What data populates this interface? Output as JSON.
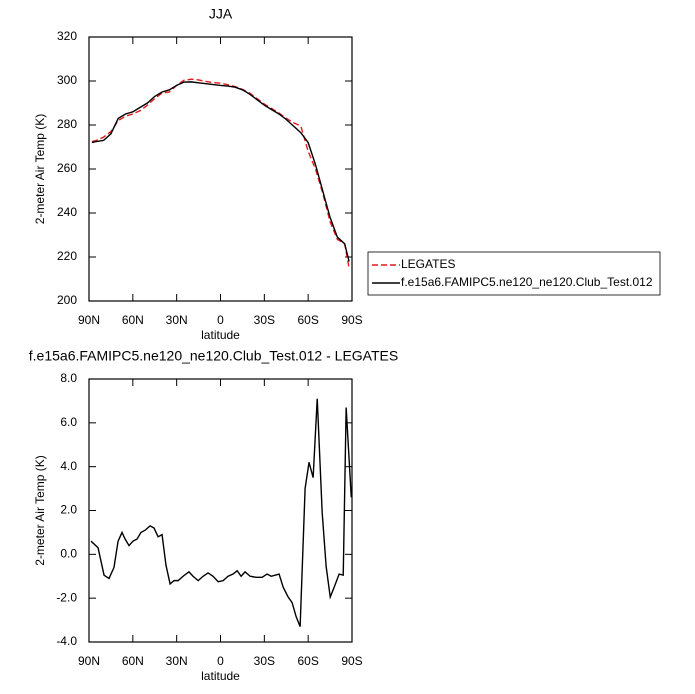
{
  "chart_data": [
    {
      "type": "line",
      "title": "JJA",
      "xlabel": "latitude",
      "ylabel": "2-meter Air Temp (K)",
      "x": [
        88,
        85,
        80,
        75,
        70,
        65,
        60,
        55,
        50,
        45,
        40,
        35,
        30,
        25,
        20,
        15,
        10,
        5,
        0,
        -5,
        -10,
        -15,
        -20,
        -25,
        -30,
        -35,
        -40,
        -45,
        -50,
        -55,
        -60,
        -65,
        -70,
        -75,
        -80,
        -85,
        -88
      ],
      "series": [
        {
          "name": "LEGATES",
          "color": "#e41a1c",
          "dash": true,
          "values": [
            272.5,
            273,
            274.5,
            277,
            282,
            284,
            285,
            286.5,
            289,
            292,
            294.5,
            295,
            298,
            300.3,
            300.8,
            300.5,
            299.8,
            299.3,
            299,
            298.3,
            297.5,
            296.2,
            294.5,
            292,
            289.5,
            287.5,
            285.5,
            283,
            281,
            279.5,
            268,
            260,
            249,
            236,
            228,
            226,
            215
          ]
        },
        {
          "name": "f.e15a6.FAMIPC5.ne120_ne120.Club_Test.012",
          "color": "#000000",
          "dash": false,
          "values": [
            272,
            272.5,
            273,
            276,
            283,
            285,
            286,
            288,
            290,
            293,
            295,
            296,
            298,
            299.5,
            299.6,
            299.2,
            298.8,
            298.4,
            298,
            297.7,
            297.2,
            296,
            294,
            291.5,
            289,
            287,
            285,
            282.5,
            279.5,
            276.5,
            272,
            262,
            250,
            238,
            229,
            226,
            218
          ]
        }
      ],
      "xlim": [
        90,
        -90
      ],
      "xticks": [
        {
          "value": 90,
          "label": "90N"
        },
        {
          "value": 60,
          "label": "60N"
        },
        {
          "value": 30,
          "label": "30N"
        },
        0,
        {
          "value": -30,
          "label": "30S"
        },
        {
          "value": -60,
          "label": "60S"
        },
        {
          "value": -90,
          "label": "90S"
        }
      ],
      "ylim": [
        200,
        320
      ],
      "yticks": [
        200,
        220,
        240,
        260,
        280,
        300,
        320
      ],
      "legend": "right"
    },
    {
      "type": "line",
      "title": "f.e15a6.FAMIPC5.ne120_ne120.Club_Test.012 - LEGATES",
      "xlabel": "latitude",
      "ylabel": "2-meter Air Temp (K)",
      "x": [
        88.6,
        83.8,
        79.7,
        76.3,
        72.9,
        70.1,
        67.4,
        65.3,
        62.6,
        59.9,
        57.1,
        54.4,
        51.6,
        48.2,
        45.5,
        42.7,
        40.0,
        37.3,
        34.5,
        31.8,
        29.0,
        25.6,
        21.6,
        18.8,
        15.3,
        11.9,
        8.5,
        5.1,
        1.6,
        -1.8,
        -5.2,
        -8.6,
        -11.4,
        -14.1,
        -16.8,
        -20.3,
        -24.4,
        -28.5,
        -31.9,
        -34.7,
        -37.4,
        -40.1,
        -42.9,
        -46.3,
        -49.0,
        -51.8,
        -54.5,
        -57.9,
        -60.6,
        -63.4,
        -66.2,
        -69.6,
        -72.3,
        -75.1,
        -77.8,
        -81.2,
        -84.0,
        -86.0,
        -89.5
      ],
      "values": [
        0.6,
        0.3,
        -0.95,
        -1.1,
        -0.6,
        0.6,
        1.0,
        0.7,
        0.4,
        0.6,
        0.7,
        1.0,
        1.1,
        1.3,
        1.2,
        0.8,
        0.9,
        -0.5,
        -1.35,
        -1.2,
        -1.2,
        -1.0,
        -0.8,
        -1.0,
        -1.2,
        -1.0,
        -0.85,
        -1.0,
        -1.25,
        -1.2,
        -1.0,
        -0.9,
        -0.75,
        -1.0,
        -0.8,
        -1.0,
        -1.05,
        -1.05,
        -0.9,
        -1.0,
        -0.95,
        -0.9,
        -1.5,
        -1.95,
        -2.2,
        -2.85,
        -3.3,
        3.0,
        4.2,
        3.5,
        7.1,
        1.9,
        -0.55,
        -1.95,
        -1.5,
        -0.9,
        -0.95,
        6.7,
        2.6
      ],
      "color": "#000000",
      "xlim": [
        90,
        -90
      ],
      "xticks": [
        {
          "value": 90,
          "label": "90N"
        },
        {
          "value": 60,
          "label": "60N"
        },
        {
          "value": 30,
          "label": "30N"
        },
        0,
        {
          "value": -30,
          "label": "30S"
        },
        {
          "value": -60,
          "label": "60S"
        },
        {
          "value": -90,
          "label": "90S"
        }
      ],
      "ylim": [
        -4,
        8
      ],
      "yticks": [
        {
          "value": -4,
          "label": "-4.0"
        },
        {
          "value": -2,
          "label": "-2.0"
        },
        {
          "value": 0,
          "label": "0.0"
        },
        {
          "value": 2,
          "label": "2.0"
        },
        {
          "value": 4,
          "label": "4.0"
        },
        {
          "value": 6,
          "label": "6.0"
        },
        {
          "value": 8,
          "label": "8.0"
        }
      ]
    }
  ]
}
